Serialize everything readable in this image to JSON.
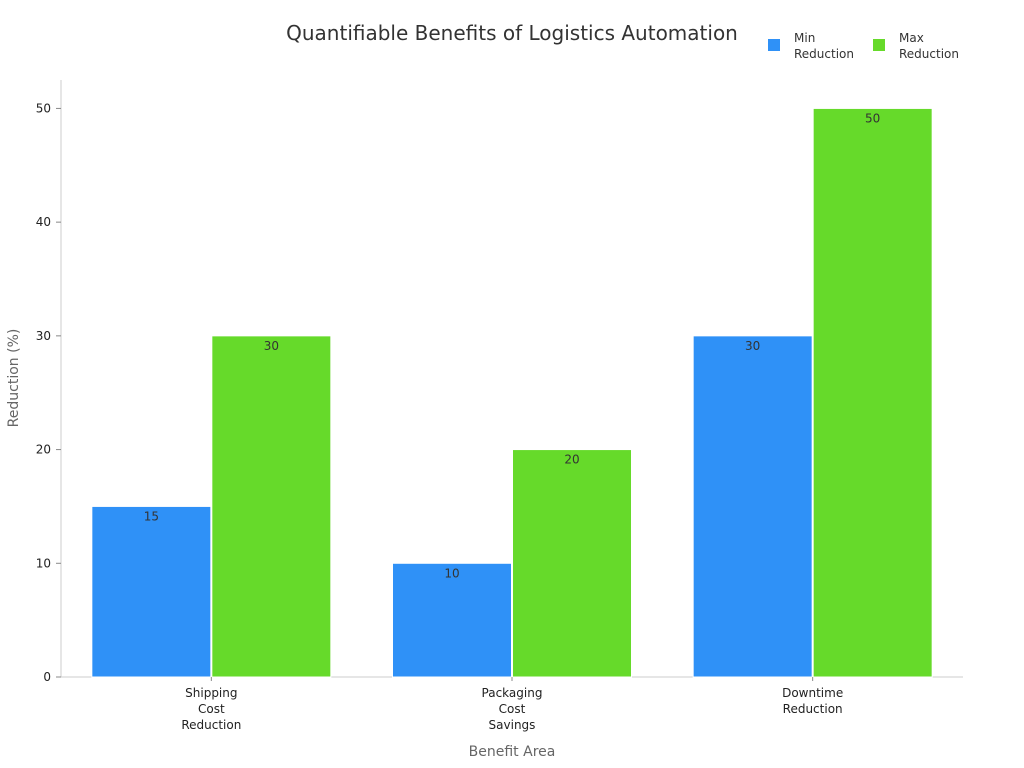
{
  "chart_data": {
    "type": "bar",
    "title": "Quantifiable Benefits of Logistics Automation",
    "xlabel": "Benefit Area",
    "ylabel": "Reduction (%)",
    "categories": [
      [
        "Shipping",
        "Cost",
        "Reduction"
      ],
      [
        "Packaging",
        "Cost",
        "Savings"
      ],
      [
        "Downtime",
        "Reduction"
      ]
    ],
    "series": [
      {
        "name": [
          "Min",
          "Reduction"
        ],
        "values": [
          15,
          10,
          30
        ],
        "color": "#2f91f7"
      },
      {
        "name": [
          "Max",
          "Reduction"
        ],
        "values": [
          30,
          20,
          50
        ],
        "color": "#66da2a"
      }
    ],
    "ylim": [
      0,
      52.5
    ],
    "yticks": [
      0,
      10,
      20,
      30,
      40,
      50
    ],
    "grid": false,
    "legend": "top-right",
    "data_labels": true
  }
}
